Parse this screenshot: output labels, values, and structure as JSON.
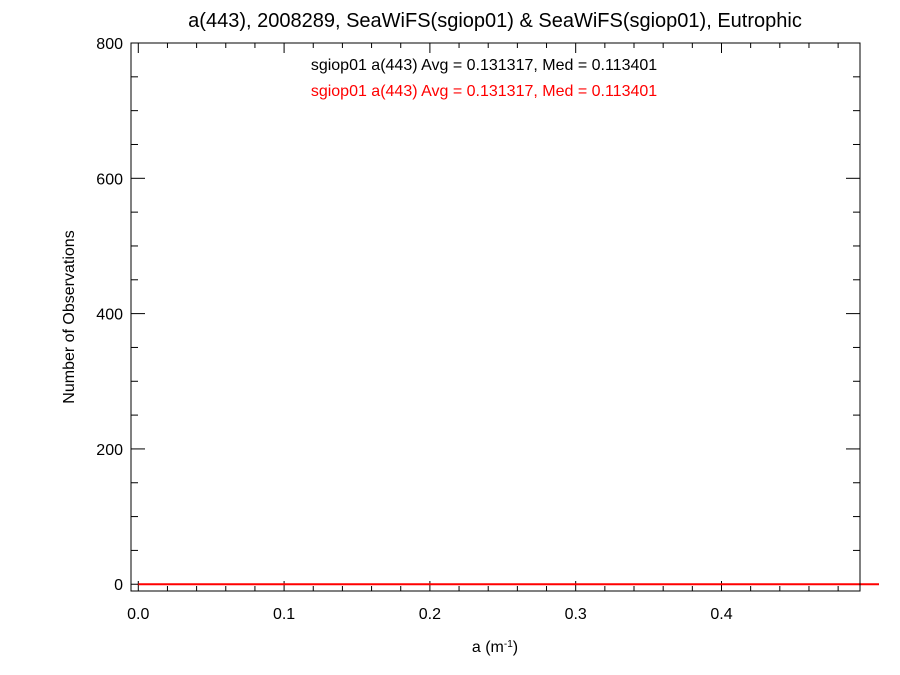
{
  "chart_data": {
    "type": "histogram",
    "title": "a(443), 2008289, SeaWiFS(sgiop01) & SeaWiFS(sgiop01), Eutrophic",
    "xlabel_base": "a (m",
    "xlabel_sup": "-1",
    "xlabel_close": ")",
    "ylabel": "Number of Observations",
    "xlim": [
      -0.005,
      0.495
    ],
    "ylim": [
      -10,
      800
    ],
    "x_ticks": [
      0.0,
      0.1,
      0.2,
      0.3,
      0.4
    ],
    "x_tick_labels": [
      "0.0",
      "0.1",
      "0.2",
      "0.3",
      "0.4"
    ],
    "y_ticks": [
      0,
      200,
      400,
      600,
      800
    ],
    "y_tick_labels": [
      "0",
      "200",
      "400",
      "600",
      "800"
    ],
    "grid": false,
    "bin_width": 0.002,
    "annotations": [
      {
        "text": "sgiop01 a(443) Avg = 0.131317, Med = 0.113401",
        "color": "#000000"
      },
      {
        "text": "sgiop01 a(443) Avg = 0.131317, Med = 0.113401",
        "color": "#ff0000"
      }
    ],
    "series": [
      {
        "color": "#000000",
        "x_start": 0.0,
        "values": [
          0,
          0,
          0,
          0,
          0,
          0,
          0,
          0,
          0,
          0,
          0,
          0,
          0,
          0,
          0,
          0,
          0,
          0,
          0,
          0,
          0,
          0,
          0,
          0,
          0,
          0,
          0,
          0,
          0,
          0,
          0,
          0,
          0,
          0,
          0,
          0,
          0,
          0,
          0,
          0,
          0,
          0,
          0,
          0,
          0,
          0,
          0,
          0,
          0,
          0,
          0,
          0,
          0,
          0,
          0,
          0,
          0,
          0,
          0,
          0,
          0,
          0,
          0,
          0,
          0,
          0,
          0,
          0,
          0,
          0,
          0,
          0,
          0,
          0,
          0,
          0,
          0,
          0,
          0,
          0,
          0,
          0,
          0,
          0,
          0,
          0,
          0,
          0,
          0,
          0,
          0,
          0,
          0,
          0,
          0,
          0,
          0,
          0,
          0,
          0,
          0,
          0,
          0,
          0,
          0,
          0,
          0,
          0,
          0,
          0,
          0,
          0,
          0,
          0,
          0,
          0,
          0,
          0,
          0,
          0,
          0,
          0,
          0,
          0,
          0,
          0,
          0,
          0,
          0,
          0,
          0,
          0,
          0,
          0,
          0,
          0,
          0,
          0,
          0,
          0,
          0,
          0,
          0,
          0,
          0,
          0,
          0,
          0,
          0,
          0,
          0,
          0,
          0,
          0,
          0,
          0,
          0,
          0,
          0,
          0,
          0,
          0,
          0,
          0,
          0,
          0,
          0,
          0,
          0,
          0,
          0,
          0,
          0,
          0,
          0,
          0,
          0,
          0,
          0,
          0,
          0,
          0,
          0,
          0,
          0,
          0,
          0,
          0,
          0,
          0,
          0,
          0,
          0,
          0,
          0,
          0,
          0,
          0,
          0,
          0,
          0,
          0,
          0,
          0,
          0,
          0,
          0,
          0,
          0,
          0,
          0,
          0,
          0,
          0,
          0,
          0,
          0,
          0,
          0,
          0,
          0,
          0,
          0,
          0,
          0,
          0,
          0,
          0,
          0,
          0,
          0,
          0,
          0,
          0,
          0,
          0,
          0,
          0,
          0,
          0,
          0,
          0,
          0,
          0,
          0,
          0,
          0,
          0,
          0,
          0,
          0,
          0,
          0,
          0
        ]
      },
      {
        "color": "#ff0000",
        "x_start": 0.0,
        "values": [
          0,
          0,
          0,
          0,
          0,
          0,
          0,
          0,
          0,
          0,
          0,
          0,
          0,
          0,
          0,
          0,
          0,
          0,
          0,
          0,
          0,
          0,
          0,
          0,
          0,
          0,
          0,
          0,
          0,
          0,
          0,
          0,
          0,
          0,
          0,
          0,
          0,
          0,
          0,
          0,
          0,
          0,
          0,
          0,
          0,
          0,
          0,
          0,
          0,
          0,
          0,
          0,
          0,
          0,
          0,
          0,
          0,
          0,
          0,
          0,
          0,
          0,
          0,
          0,
          0,
          0,
          0,
          0,
          0,
          0,
          0,
          0,
          0,
          0,
          0,
          0,
          0,
          0,
          0,
          0,
          0,
          0,
          0,
          0,
          0,
          0,
          0,
          0,
          0,
          0,
          0,
          0,
          0,
          0,
          0,
          0,
          0,
          0,
          0,
          0,
          0,
          0,
          0,
          0,
          0,
          0,
          0,
          0,
          0,
          0,
          0,
          0,
          0,
          0,
          0,
          0,
          0,
          0,
          0,
          0,
          0,
          0,
          0,
          0,
          0,
          0,
          0,
          0,
          0,
          0,
          0,
          0,
          0,
          0,
          0,
          0,
          0,
          0,
          0,
          0,
          0,
          0,
          0,
          0,
          0,
          0,
          0,
          0,
          0,
          0,
          0,
          0,
          0,
          0,
          0,
          0,
          0,
          0,
          0,
          0,
          0,
          0,
          0,
          0,
          0,
          0,
          0,
          0,
          0,
          0,
          0,
          0,
          0,
          0,
          0,
          0,
          0,
          0,
          0,
          0,
          0,
          0,
          0,
          0,
          0,
          0,
          0,
          0,
          0,
          0,
          0,
          0,
          0,
          0,
          0,
          0,
          0,
          0,
          0,
          0,
          0,
          0,
          0,
          0,
          0,
          0,
          0,
          0,
          0,
          0,
          0,
          0,
          0,
          0,
          0,
          0,
          0,
          0,
          0,
          0,
          0,
          0,
          0,
          0,
          0,
          0,
          0,
          0,
          0,
          0,
          0,
          0,
          0,
          0,
          0,
          0,
          0,
          0,
          0,
          0,
          0,
          0,
          0,
          0,
          0,
          0,
          0,
          0,
          0,
          0,
          0,
          0,
          0,
          0
        ]
      }
    ]
  }
}
